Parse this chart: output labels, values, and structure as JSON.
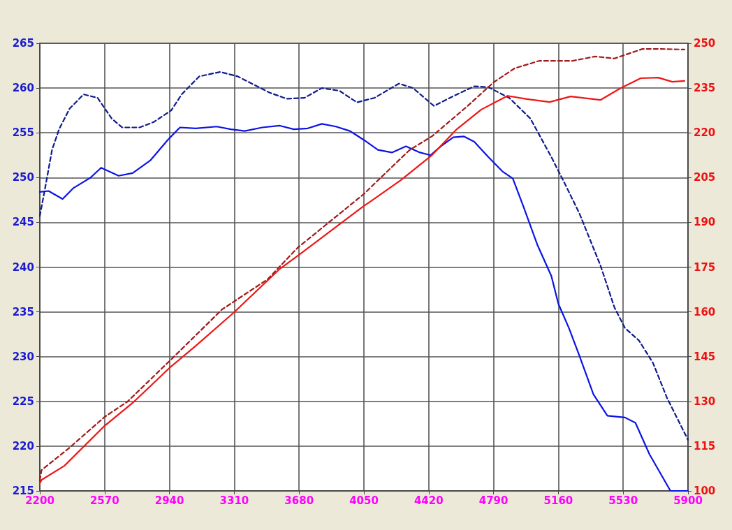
{
  "chart_data": {
    "type": "line",
    "marker": "none",
    "grid": true,
    "xlim": [
      2200,
      5900
    ],
    "xticks": [
      2200,
      2570,
      2940,
      3310,
      3680,
      4050,
      4420,
      4790,
      5160,
      5530,
      5900
    ],
    "ylim": [
      215,
      265
    ],
    "yticks": [
      215,
      220,
      225,
      230,
      235,
      240,
      245,
      250,
      255,
      260,
      265
    ],
    "y2lim": [
      100,
      250
    ],
    "y2ticks": [
      100,
      115,
      130,
      145,
      160,
      175,
      190,
      205,
      220,
      235,
      250
    ],
    "series": [
      {
        "color": "#0a14e6",
        "line_style": "solid",
        "x": [
          2200,
          2250,
          2330,
          2390,
          2490,
          2550,
          2650,
          2730,
          2830,
          2930,
          3000,
          3090,
          3210,
          3290,
          3370,
          3470,
          3570,
          3650,
          3730,
          3810,
          3890,
          3970,
          4050,
          4130,
          4210,
          4290,
          4370,
          4430,
          4490,
          4560,
          4620,
          4680,
          4760,
          4840,
          4900,
          4960,
          5040,
          5120,
          5160,
          5220,
          5280,
          5360,
          5440,
          5540,
          5600,
          5680,
          5800,
          5900
        ],
        "values": [
          248.4,
          248.5,
          247.6,
          248.8,
          250,
          251.1,
          250.2,
          250.5,
          251.9,
          254.2,
          255.6,
          255.5,
          255.7,
          255.4,
          255.2,
          255.6,
          255.8,
          255.4,
          255.5,
          256,
          255.7,
          255.2,
          254.2,
          253.1,
          252.8,
          253.5,
          252.8,
          252.5,
          253.5,
          254.5,
          254.6,
          254,
          252.3,
          250.7,
          249.9,
          246.8,
          242.5,
          239,
          235.9,
          233.2,
          230.1,
          225.8,
          223.4,
          223.2,
          222.6,
          219.1,
          215,
          215
        ]
      },
      {
        "color": "#101c8c",
        "line_style": "dashed",
        "x": [
          2200,
          2230,
          2270,
          2310,
          2370,
          2450,
          2530,
          2610,
          2670,
          2770,
          2850,
          2950,
          3010,
          3110,
          3230,
          3330,
          3430,
          3510,
          3610,
          3710,
          3810,
          3910,
          4010,
          4110,
          4250,
          4330,
          4450,
          4560,
          4680,
          4760,
          4880,
          5000,
          5120,
          5200,
          5280,
          5400,
          5480,
          5540,
          5620,
          5700,
          5780,
          5900
        ],
        "values": [
          245.7,
          248.8,
          253.1,
          255.4,
          257.7,
          259.3,
          258.9,
          256.6,
          255.6,
          255.6,
          256.2,
          257.5,
          259.3,
          261.3,
          261.8,
          261.3,
          260.3,
          259.5,
          258.8,
          258.9,
          260,
          259.7,
          258.4,
          258.9,
          260.5,
          260,
          258,
          259.1,
          260.2,
          260.1,
          258.9,
          256.6,
          252.3,
          249.2,
          246,
          240.2,
          235.5,
          233.2,
          231.8,
          229.3,
          225.4,
          220.7
        ]
      },
      {
        "color": "#ee1515",
        "line_style": "solid",
        "axis": "y2",
        "x": [
          2200,
          2210,
          2340,
          2570,
          2730,
          2940,
          3100,
          3310,
          3570,
          3680,
          4050,
          4090,
          4260,
          4440,
          4580,
          4720,
          4870,
          4980,
          5110,
          5230,
          5400,
          5510,
          5630,
          5730,
          5810,
          5880
        ],
        "values": [
          102.5,
          103.7,
          108.4,
          121.8,
          129.5,
          141.2,
          149.1,
          159.9,
          174.4,
          179.1,
          195.5,
          197.1,
          204.1,
          212.6,
          221.2,
          227.8,
          232.4,
          231.3,
          230.3,
          232.2,
          231,
          234.8,
          238.3,
          238.5,
          237.1,
          237.4
        ]
      },
      {
        "color": "#a01a1a",
        "line_style": "dashed",
        "axis": "y2",
        "x": [
          2200,
          2210,
          2360,
          2570,
          2700,
          2940,
          3240,
          3500,
          3670,
          4050,
          4090,
          4310,
          4440,
          4640,
          4790,
          4910,
          5050,
          5240,
          5370,
          5480,
          5640,
          5750,
          5880
        ],
        "values": [
          103.5,
          107,
          114,
          124.8,
          129.9,
          143.5,
          160.8,
          170.9,
          181.4,
          199.5,
          201.8,
          214.2,
          218.9,
          228.9,
          236.9,
          241.6,
          244.1,
          244.1,
          245.6,
          244.9,
          248.1,
          248.1,
          247.9
        ]
      }
    ]
  }
}
